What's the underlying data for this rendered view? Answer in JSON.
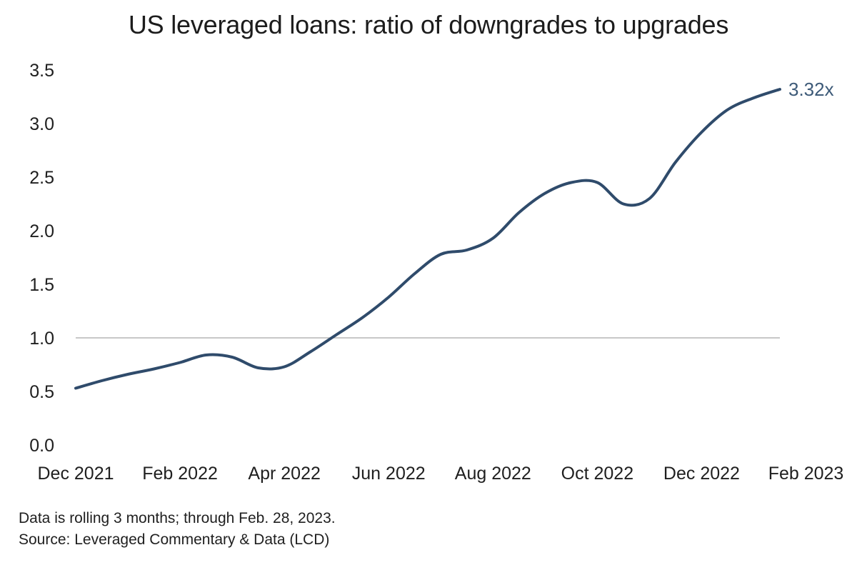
{
  "chart_data": {
    "type": "line",
    "title": "US leveraged loans: ratio of downgrades to upgrades",
    "xlabel": "",
    "ylabel": "",
    "ylim": [
      0,
      3.5
    ],
    "yticks": [
      "0.0",
      "0.5",
      "1.0",
      "1.5",
      "2.0",
      "2.5",
      "3.0",
      "3.5"
    ],
    "xticks": [
      "Dec 2021",
      "Feb 2022",
      "Apr 2022",
      "Jun 2022",
      "Aug 2022",
      "Oct 2022",
      "Dec 2022",
      "Feb 2023"
    ],
    "reference_line": 1.0,
    "grid": false,
    "series": [
      {
        "values": [
          [
            0,
            0.53
          ],
          [
            0.5,
            0.6
          ],
          [
            1.0,
            0.66
          ],
          [
            1.5,
            0.71
          ],
          [
            2.0,
            0.77
          ],
          [
            2.5,
            0.84
          ],
          [
            3.0,
            0.82
          ],
          [
            3.5,
            0.72
          ],
          [
            4.0,
            0.73
          ],
          [
            4.5,
            0.87
          ],
          [
            5.0,
            1.03
          ],
          [
            5.5,
            1.19
          ],
          [
            6.0,
            1.38
          ],
          [
            6.5,
            1.6
          ],
          [
            7.0,
            1.78
          ],
          [
            7.5,
            1.82
          ],
          [
            8.0,
            1.93
          ],
          [
            8.5,
            2.17
          ],
          [
            9.0,
            2.35
          ],
          [
            9.5,
            2.45
          ],
          [
            10.0,
            2.45
          ],
          [
            10.5,
            2.25
          ],
          [
            11.0,
            2.3
          ],
          [
            11.5,
            2.64
          ],
          [
            12.0,
            2.92
          ],
          [
            12.5,
            3.13
          ],
          [
            13.0,
            3.24
          ],
          [
            13.5,
            3.32
          ]
        ],
        "end_label": "3.32x"
      }
    ],
    "colors": {
      "line": "#2f4b6b",
      "reference": "#b5b5b5",
      "end_label": "#3d5a78"
    }
  },
  "footnote": {
    "line1": "Data is rolling 3 months; through Feb. 28, 2023.",
    "line2": "Source: Leveraged Commentary & Data (LCD)"
  }
}
